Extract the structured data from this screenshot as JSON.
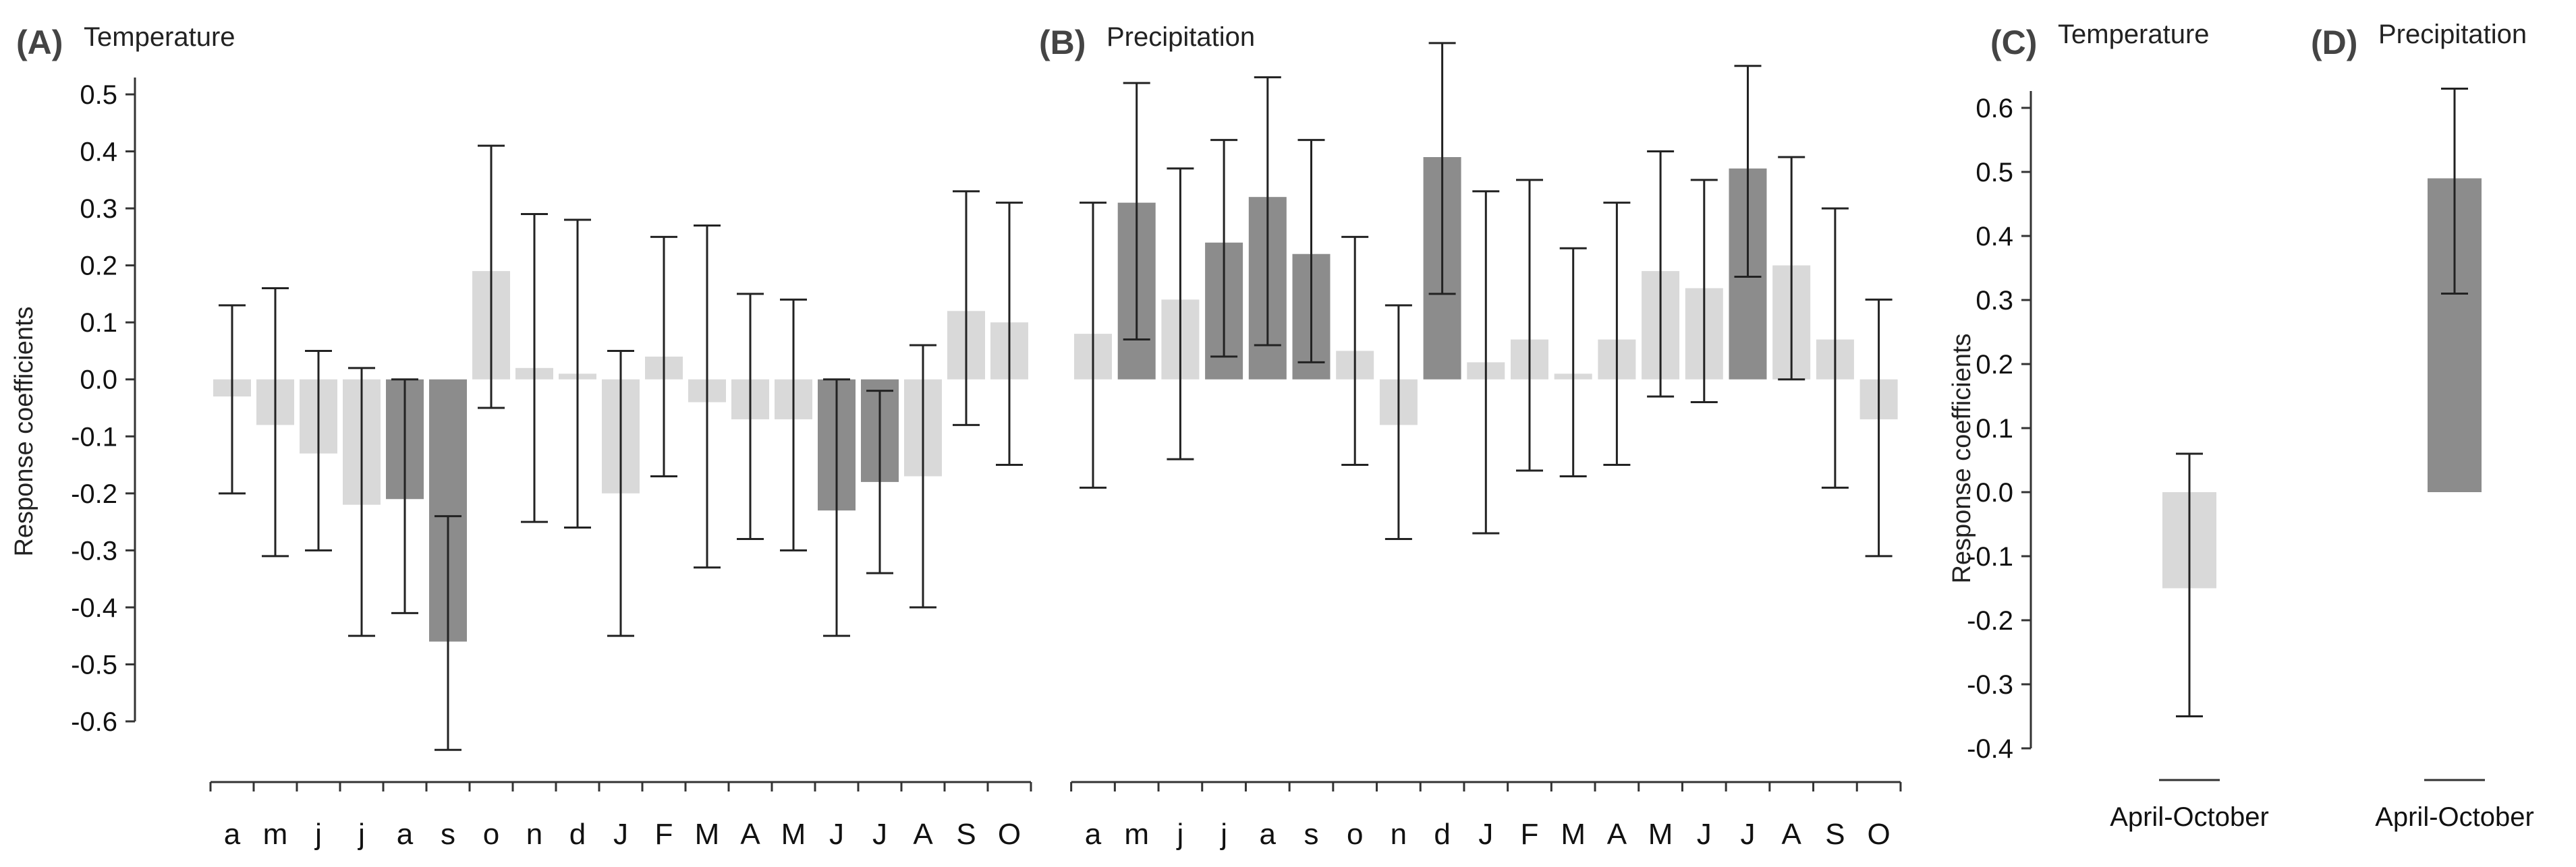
{
  "colors": {
    "significant": "#8c8c8c",
    "nonsignificant": "#d9d9d9",
    "axis": "#333333",
    "error": "#222222"
  },
  "chart_data": [
    {
      "panel": "(A)",
      "title": "Temperature",
      "type": "bar",
      "ylabel": "Response coefficients",
      "ylim": [
        -0.6,
        0.5
      ],
      "yticks": [
        "0.5",
        "0.4",
        "0.3",
        "0.2",
        "0.1",
        "0.0",
        "-0.1",
        "-0.2",
        "-0.3",
        "-0.4",
        "-0.5",
        "-0.6"
      ],
      "categories": [
        "a",
        "m",
        "j",
        "j",
        "a",
        "s",
        "o",
        "n",
        "d",
        "J",
        "F",
        "M",
        "A",
        "M",
        "J",
        "J",
        "A",
        "S",
        "O"
      ],
      "values": [
        -0.03,
        -0.08,
        -0.13,
        -0.22,
        -0.21,
        -0.46,
        0.19,
        0.02,
        0.01,
        -0.2,
        0.04,
        -0.04,
        -0.07,
        -0.07,
        -0.23,
        -0.18,
        -0.17,
        0.12,
        0.1
      ],
      "lower": [
        -0.2,
        -0.31,
        -0.3,
        -0.45,
        -0.41,
        -0.65,
        -0.05,
        -0.25,
        -0.26,
        -0.45,
        -0.17,
        -0.33,
        -0.28,
        -0.3,
        -0.45,
        -0.34,
        -0.4,
        -0.08,
        -0.15
      ],
      "upper": [
        0.13,
        0.16,
        0.05,
        0.02,
        0.0,
        -0.24,
        0.41,
        0.29,
        0.28,
        0.05,
        0.25,
        0.27,
        0.15,
        0.14,
        0.0,
        -0.02,
        0.06,
        0.33,
        0.31
      ],
      "significant": [
        false,
        false,
        false,
        false,
        true,
        true,
        false,
        false,
        false,
        false,
        false,
        false,
        false,
        false,
        true,
        true,
        false,
        false,
        false
      ]
    },
    {
      "panel": "(B)",
      "title": "Precipitation",
      "type": "bar",
      "ylim": [
        -0.6,
        0.5
      ],
      "categories": [
        "a",
        "m",
        "j",
        "j",
        "a",
        "s",
        "o",
        "n",
        "d",
        "J",
        "F",
        "M",
        "A",
        "M",
        "J",
        "J",
        "A",
        "S",
        "O"
      ],
      "values": [
        0.08,
        0.31,
        0.14,
        0.24,
        0.32,
        0.22,
        0.05,
        -0.08,
        0.39,
        0.03,
        0.07,
        0.01,
        0.07,
        0.19,
        0.16,
        0.37,
        0.2,
        0.07,
        -0.07
      ],
      "lower": [
        -0.19,
        0.07,
        -0.14,
        0.04,
        0.06,
        0.03,
        -0.15,
        -0.28,
        0.15,
        -0.27,
        -0.16,
        -0.17,
        -0.15,
        -0.03,
        -0.04,
        0.18,
        0.0,
        -0.19,
        -0.31
      ],
      "upper": [
        0.31,
        0.52,
        0.37,
        0.42,
        0.53,
        0.42,
        0.25,
        0.13,
        0.59,
        0.33,
        0.35,
        0.23,
        0.31,
        0.4,
        0.35,
        0.55,
        0.39,
        0.3,
        0.14
      ],
      "significant": [
        false,
        true,
        false,
        true,
        true,
        true,
        false,
        false,
        true,
        false,
        false,
        false,
        false,
        false,
        false,
        true,
        false,
        false,
        false
      ]
    },
    {
      "panel": "(C)",
      "title": "Temperature",
      "type": "bar",
      "ylabel": "Response coefficients",
      "ylim": [
        -0.4,
        0.6
      ],
      "yticks": [
        "0.6",
        "0.5",
        "0.4",
        "0.3",
        "0.2",
        "0.1",
        "0.0",
        "-0.1",
        "-0.2",
        "-0.3",
        "-0.4"
      ],
      "categories": [
        "April-October"
      ],
      "values": [
        -0.15
      ],
      "lower": [
        -0.35
      ],
      "upper": [
        0.06
      ],
      "significant": [
        false
      ]
    },
    {
      "panel": "(D)",
      "title": "Precipitation",
      "type": "bar",
      "ylim": [
        -0.4,
        0.6
      ],
      "categories": [
        "April-October"
      ],
      "values": [
        0.49
      ],
      "lower": [
        0.31
      ],
      "upper": [
        0.63
      ],
      "significant": [
        true
      ]
    }
  ]
}
